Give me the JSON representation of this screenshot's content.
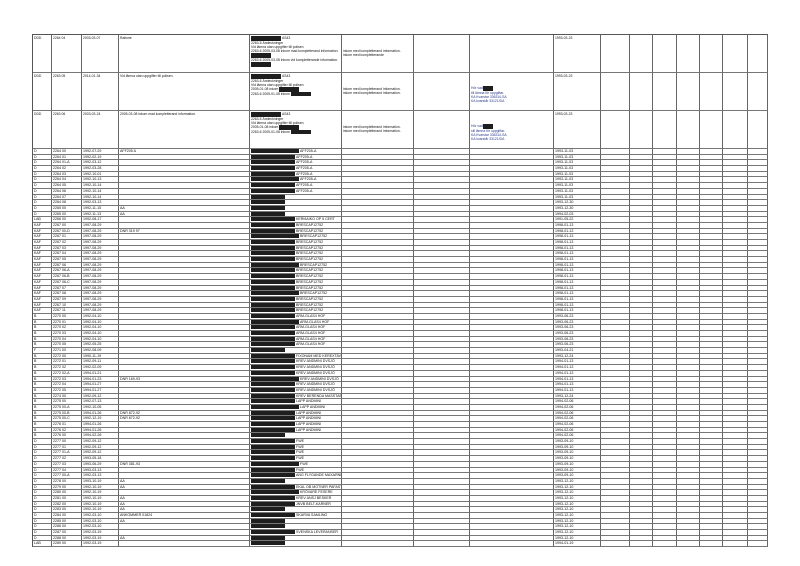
{
  "header_rows": [
    {
      "col0": "DDD",
      "col1": "2264",
      "col1b": "04",
      "col2": "2003-03-07",
      "col2b": "Ratione",
      "col4_lines": [
        "2263-5 Ändeckninger",
        "Vid lämna utan uppgifter till polisen",
        "2263-6 2005-03-08 inkom mad kompletterand information.",
        "2263-6 2005-03-08 inkom vid kompletterande information."
      ],
      "col4_tag": "AS43",
      "col5_lines": [
        "inkom med kompletterand information.",
        "inkom med kompletterande"
      ],
      "col7_lines": [],
      "col8": "1993-03-23"
    },
    {
      "col0": "DDD",
      "col1": "2263",
      "col1b": "05",
      "col2": "2014-01-34",
      "col2b": "Vid lämna utan uppgifter till polisen.",
      "col4_lines": [
        "2263-5 Ändeckninger",
        "Vid lämna utan uppgifter till polisen",
        "2005-01-08 inkom",
        "2263-6 2005-01-08 inkom"
      ],
      "col4_tag": "AS43",
      "col5_lines": [
        "inkom med kompletterand information.",
        "inkom med kompletterand information."
      ],
      "col7_lines": [
        "Hör vad",
        "till lämna för uppgiftar.",
        "KA Kvarstar 33631/LSA",
        "KA kvarstår 33121/DA"
      ],
      "col8": "1993-03-23"
    },
    {
      "col0": "DDD",
      "col1": "2263",
      "col1b": "06",
      "col2": "2003-03-24",
      "col2b": "2005-03-08 inkom mad kompletterand information.",
      "col4_lines": [
        "2263-5 Ändeckninger",
        "Vid lämna utan uppgifter till polisen",
        "2005-01-08 inkom",
        "2263-6 2005-01-08 inkom"
      ],
      "col4_tag": "AS43",
      "col5_lines": [
        "inkom med kompletterand information.",
        "inkom med kompletterand information."
      ],
      "col7_lines": [
        "Hör vad",
        "sill lämna för uppgiftar.",
        "KA Kvarstar 33631/LSA",
        "KA kvarstår 33121/DA"
      ],
      "col8": "1993-03-23"
    }
  ],
  "rows": [
    {
      "a": "D",
      "b": "2264",
      "c": "00",
      "d": "1992-07-29",
      "e": "AFF205 A",
      "f": "AFF205-A",
      "g": "1993-11-03"
    },
    {
      "a": "D",
      "b": "2264",
      "c": "01",
      "d": "1992-02-19",
      "e": "",
      "f": "AFF205-A",
      "g": "1993-11-03"
    },
    {
      "a": "D",
      "b": "2264",
      "c": "01-A",
      "d": "1992-03-12",
      "e": "",
      "f": "AFF205-A",
      "g": "1993-11-03"
    },
    {
      "a": "D",
      "b": "2264",
      "c": "02",
      "d": "1992-03-28",
      "e": "",
      "f": "AFF205-A",
      "g": "1993-11-03"
    },
    {
      "a": "D",
      "b": "2264",
      "c": "03",
      "d": "1992-10-01",
      "e": "",
      "f": "AFF205-A",
      "g": "1993-11-03"
    },
    {
      "a": "D",
      "b": "2264",
      "c": "04",
      "d": "1992-10-13",
      "e": "",
      "f": "AFF205-A",
      "g": "1993-11-03"
    },
    {
      "a": "D",
      "b": "2264",
      "c": "05",
      "d": "1992-10-14",
      "e": "",
      "f": "AFF205-A",
      "g": "1993-11-03"
    },
    {
      "a": "D",
      "b": "2264",
      "c": "06",
      "d": "1992-10-14",
      "e": "",
      "f": "AFF205-A",
      "g": "1993-11-03"
    },
    {
      "a": "D",
      "b": "2264",
      "c": "07",
      "d": "1992-10-14",
      "e": "",
      "f": "",
      "g": "1993-11-03"
    },
    {
      "a": "D",
      "b": "2264",
      "c": "08",
      "d": "1992-03-13",
      "e": "",
      "f": "",
      "g": "1993-12-30"
    },
    {
      "a": "D",
      "b": "2265",
      "c": "00",
      "d": "1992-11-15",
      "e": "AA",
      "f": "",
      "g": "1993-12-30"
    },
    {
      "a": "D",
      "b": "2265",
      "c": "00",
      "d": "1992-11-13",
      "e": "AA",
      "f": "",
      "g": "1994-02-03"
    },
    {
      "a": "LAB",
      "b": "2266",
      "c": "00",
      "d": "1992-08-17",
      "e": "",
      "f": "KERMAIKO OP 5 CERT",
      "g": "1991-05-22"
    },
    {
      "a": "KAF",
      "b": "2267",
      "c": "00",
      "d": "1997-08-29",
      "e": "",
      "f": "BRESCAP12752",
      "g": "1998-01-13"
    },
    {
      "a": "KAF",
      "b": "2267",
      "c": "00-D",
      "d": "1997-08-29",
      "e": "DNR 319 97",
      "f": "BRESCAP12752",
      "g": "1998-01-13"
    },
    {
      "a": "KAF",
      "b": "2267",
      "c": "01",
      "d": "1997-08-29",
      "e": "",
      "f": "BRESCAP12752",
      "g": "1998-01-13"
    },
    {
      "a": "KAF",
      "b": "2267",
      "c": "02",
      "d": "1997-08-29",
      "e": "",
      "f": "BRESCAP12752",
      "g": "1998-01-13"
    },
    {
      "a": "KAF",
      "b": "2267",
      "c": "03",
      "d": "1997-08-29",
      "e": "",
      "f": "BRESCAP12752",
      "g": "1998-01-13"
    },
    {
      "a": "KAF",
      "b": "2267",
      "c": "04",
      "d": "1997-08-29",
      "e": "",
      "f": "BRESCAP12752",
      "g": "1998-01-13"
    },
    {
      "a": "KAF",
      "b": "2267",
      "c": "05",
      "d": "1997-08-29",
      "e": "",
      "f": "BRESCAP12752",
      "g": "1998-01-13"
    },
    {
      "a": "KAF",
      "b": "2267",
      "c": "06",
      "d": "1997-08-29",
      "e": "",
      "f": "BRESCAP12752",
      "g": "1998-01-13"
    },
    {
      "a": "KAF",
      "b": "2267",
      "c": "06-A",
      "d": "1997-08-29",
      "e": "",
      "f": "BRESCAP12752",
      "g": "1998-01-13"
    },
    {
      "a": "KAF",
      "b": "2267",
      "c": "06-B",
      "d": "1997-08-29",
      "e": "",
      "f": "BRESCAP12752",
      "g": "1998-01-13"
    },
    {
      "a": "KAF",
      "b": "2267",
      "c": "06-C",
      "d": "1997-08-29",
      "e": "",
      "f": "BRESCAP12752",
      "g": "1998-01-13"
    },
    {
      "a": "KAF",
      "b": "2267",
      "c": "07",
      "d": "1997-08-29",
      "e": "",
      "f": "BRESCAP12752",
      "g": "1998-01-13"
    },
    {
      "a": "KAF",
      "b": "2267",
      "c": "08",
      "d": "1997-08-29",
      "e": "",
      "f": "BRESCAP12752",
      "g": "1998-01-13"
    },
    {
      "a": "KAF",
      "b": "2267",
      "c": "09",
      "d": "1997-08-29",
      "e": "",
      "f": "BRESCAP12752",
      "g": "1998-01-13"
    },
    {
      "a": "KAF",
      "b": "2267",
      "c": "10",
      "d": "1997-08-29",
      "e": "",
      "f": "BRESCAP12752",
      "g": "1998-01-13"
    },
    {
      "a": "KAF",
      "b": "2267",
      "c": "11",
      "d": "1997-08-29",
      "e": "",
      "f": "BRESCAP12752",
      "g": "1998-01-13"
    },
    {
      "a": "B",
      "b": "2270",
      "c": "00",
      "d": "1992-04-10",
      "e": "",
      "f": "ARM-GLAS4 HOF",
      "g": "1993-06-23"
    },
    {
      "a": "B",
      "b": "2270",
      "c": "01",
      "d": "1992-04-10",
      "e": "",
      "f": "ARM-GLAS4 HOF",
      "g": "1993-06-23"
    },
    {
      "a": "B",
      "b": "2270",
      "c": "02",
      "d": "1992-04-10",
      "e": "",
      "f": "ARM-GLAS4 HOF",
      "g": "1993-06-23"
    },
    {
      "a": "B",
      "b": "2270",
      "c": "03",
      "d": "1992-04-10",
      "e": "",
      "f": "ARM-GLAS4 HOF",
      "g": "1993-06-23"
    },
    {
      "a": "B",
      "b": "2270",
      "c": "04",
      "d": "1992-04-10",
      "e": "",
      "f": "ARM-GLAS4 HOF",
      "g": "1993-06-23"
    },
    {
      "a": "B",
      "b": "2270",
      "c": "05",
      "d": "1992-05-25",
      "e": "",
      "f": "ARM-GLAS4 HOF",
      "g": "1993-06-23"
    },
    {
      "a": "F",
      "b": "2271",
      "c": "00",
      "d": "1992-08-09",
      "e": "",
      "f": "",
      "g": "1993-04-21"
    },
    {
      "a": "B",
      "b": "2272",
      "c": "00",
      "d": "1990-11-19",
      "e": "",
      "f": "FIXONAM MED KEREXTAV SOGG",
      "g": "1993-12-24"
    },
    {
      "a": "B",
      "b": "2272",
      "c": "01",
      "d": "1992-09-11",
      "e": "",
      "f": "KREV ANDMINI  DVSJÖ",
      "g": "1994-01-13"
    },
    {
      "a": "B",
      "b": "2272",
      "c": "02",
      "d": "1992-02-09",
      "e": "",
      "f": "KREV ANDMINI  DVSJÖ",
      "g": "1994-01-13"
    },
    {
      "a": "B",
      "b": "2272",
      "c": "02-A",
      "d": "1994-01-21",
      "e": "",
      "f": "KREV ANDMINI  DVSJÖ",
      "g": "1994-01-13"
    },
    {
      "a": "B",
      "b": "2272",
      "c": "03",
      "d": "1994-01-23",
      "e": "DNR 169-93",
      "f": "KREV ANDMINI  DVSJÖ",
      "g": "1994-01-13"
    },
    {
      "a": "B",
      "b": "2272",
      "c": "04",
      "d": "1994-01-27",
      "e": "",
      "f": "KREV ANDMINI  DVSJÖ",
      "g": "1994-01-13"
    },
    {
      "a": "B",
      "b": "2272",
      "c": "05",
      "d": "1994-01-27",
      "e": "",
      "f": "KREV ANDMINI  DVSJÖ",
      "g": "1994-01-13"
    },
    {
      "a": "B",
      "b": "2274",
      "c": "00",
      "d": "1992-09-12",
      "e": "",
      "f": "KREV BERENDA MASSTAB",
      "g": "1993-12-24"
    },
    {
      "a": "B",
      "b": "2275",
      "c": "00",
      "d": "1992-07-13",
      "e": "",
      "f": "LAPP ANDMINI",
      "g": "1994-02-06"
    },
    {
      "a": "B",
      "b": "2275",
      "c": "00-A",
      "d": "1992-10-05",
      "e": "",
      "f": "LAPP ANDMINI",
      "g": "1994-02-06"
    },
    {
      "a": "B",
      "b": "2275",
      "c": "00-B",
      "d": "1994-01-26",
      "e": "DNR 872-92",
      "f": "LAPP ANDMINI",
      "g": "1994-02-06"
    },
    {
      "a": "B",
      "b": "2275",
      "c": "00-C",
      "d": "1992-12-19",
      "e": "DNR 872-92",
      "f": "LAPP ANDMINI",
      "g": "1994-02-06"
    },
    {
      "a": "B",
      "b": "2276",
      "c": "01",
      "d": "1994-01-26",
      "e": "",
      "f": "LAPP ANDMINI",
      "g": "1994-02-06"
    },
    {
      "a": "B",
      "b": "2276",
      "c": "02",
      "d": "1994-01-26",
      "e": "",
      "f": "LAPP ANDMINI",
      "g": "1994-02-06"
    },
    {
      "a": "B",
      "b": "2276",
      "c": "00",
      "d": "1994-02-26",
      "e": "",
      "f": "",
      "g": "1994-02-06"
    },
    {
      "a": "D",
      "b": "2277",
      "c": "00",
      "d": "1992-09-12",
      "e": "",
      "f": "FWE",
      "g": "1993-09-10"
    },
    {
      "a": "D",
      "b": "2277",
      "c": "01",
      "d": "1992-09-12",
      "e": "",
      "f": "FWE",
      "g": "1993-09-10"
    },
    {
      "a": "D",
      "b": "2277",
      "c": "01-A",
      "d": "1992-09-12",
      "e": "",
      "f": "FWE",
      "g": "1993-09-10"
    },
    {
      "a": "D",
      "b": "2277",
      "c": "02",
      "d": "1993-05-18",
      "e": "",
      "f": "FWE",
      "g": "1993-09-10"
    },
    {
      "a": "D",
      "b": "2277",
      "c": "03",
      "d": "1993-06-29",
      "e": "DNR 381-93",
      "f": "FWE",
      "g": "1993-09-10"
    },
    {
      "a": "D",
      "b": "2277",
      "c": "04",
      "d": "1993-03-13",
      "e": "",
      "f": "FWE",
      "g": "1993-09-10"
    },
    {
      "a": "D",
      "b": "2277",
      "c": "00-A",
      "d": "1992-03-13",
      "e": "",
      "f": "ANG FLYGANDE MAXARNE",
      "g": "1993-09-10"
    },
    {
      "a": "D",
      "b": "2278",
      "c": "00",
      "d": "1993-10-19",
      "e": "AA",
      "f": "",
      "g": "1993-12-10"
    },
    {
      "a": "D",
      "b": "2279",
      "c": "00",
      "d": "1992-10-19",
      "e": "AA",
      "f": "EKAL OB MOTNER PAFAST",
      "g": "1993-12-10"
    },
    {
      "a": "D",
      "b": "2280",
      "c": "00",
      "d": "1992-10-19",
      "e": "",
      "f": "KRÖVARE FESERE",
      "g": "1993-12-10"
    },
    {
      "a": "D",
      "b": "2281",
      "c": "00",
      "d": "1992-10-19",
      "e": "AA",
      "f": "KREV ANSJ BESKER",
      "g": "1993-12-10"
    },
    {
      "a": "D",
      "b": "2282",
      "c": "00",
      "d": "1992-10-19",
      "e": "AA",
      "f": "JNVB BELT-KARNER",
      "g": "1993-12-10"
    },
    {
      "a": "D",
      "b": "2283",
      "c": "00",
      "d": "1992-10-19",
      "e": "AA",
      "f": "",
      "g": "1993-12-10"
    },
    {
      "a": "D",
      "b": "2284",
      "c": "00",
      "d": "1992-03-10",
      "e": "ANKOMMER 01824",
      "f": "SKARVA SAMLING",
      "g": "1993-12-10"
    },
    {
      "a": "D",
      "b": "2285",
      "c": "00",
      "d": "1992-03-10",
      "e": "AA",
      "f": "",
      "g": "1993-12-10"
    },
    {
      "a": "D",
      "b": "2286",
      "c": "00",
      "d": "1992-03-10",
      "e": "",
      "f": "",
      "g": "1993-12-10"
    },
    {
      "a": "D",
      "b": "2287",
      "c": "00",
      "d": "1992-03-19",
      "e": "",
      "f": "SVENSKA LEVERANSER",
      "g": "1993-12-10"
    },
    {
      "a": "D",
      "b": "2288",
      "c": "00",
      "d": "1992-03-19",
      "e": "AA",
      "f": "",
      "g": "1993-12-10"
    },
    {
      "a": "LAB",
      "b": "2289",
      "c": "00",
      "d": "1992-03-19",
      "e": "",
      "f": "",
      "g": "1994-01-19"
    }
  ]
}
